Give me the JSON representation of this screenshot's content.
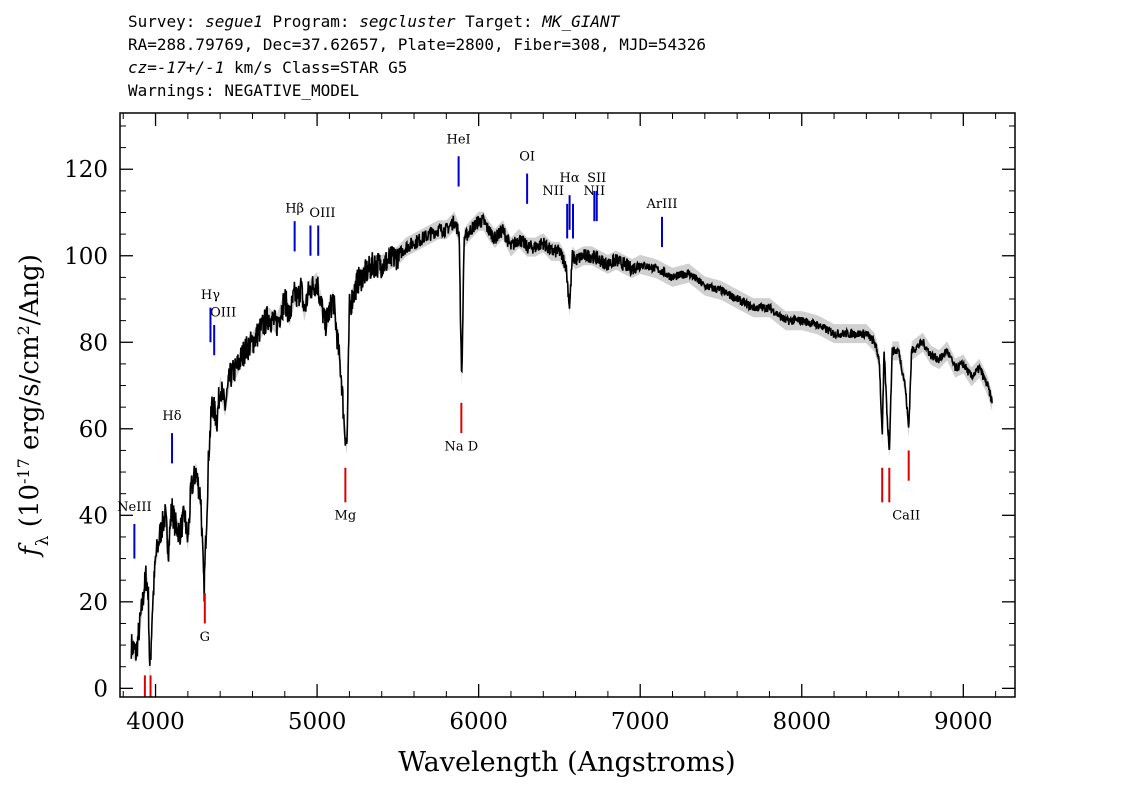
{
  "header": {
    "l1": [
      {
        "text": "Survey: ",
        "italic": false
      },
      {
        "text": "segue1",
        "italic": true
      },
      {
        "text": " Program: ",
        "italic": false
      },
      {
        "text": "segcluster",
        "italic": true
      },
      {
        "text": " Target: ",
        "italic": false
      },
      {
        "text": "MK_GIANT",
        "italic": true
      }
    ],
    "l2": [
      {
        "text": "RA=288.79769, Dec=37.62657, Plate=2800, Fiber=308, MJD=54326",
        "italic": false
      }
    ],
    "l3": [
      {
        "text": "cz=-17+/-1",
        "italic": true
      },
      {
        "text": " km/s Class=STAR G5",
        "italic": false
      }
    ],
    "l4": [
      {
        "text": "Warnings: NEGATIVE_MODEL",
        "italic": false
      }
    ]
  },
  "chart_data": {
    "type": "line",
    "xlabel": "Wavelength (Angstroms)",
    "ylabel_parts": [
      "f",
      "λ",
      " (10",
      "-17",
      " erg/s/cm",
      "2",
      "/Ang)"
    ],
    "xlim": [
      3780,
      9320
    ],
    "ylim": [
      -2,
      133
    ],
    "xticks": [
      4000,
      5000,
      6000,
      7000,
      8000,
      9000
    ],
    "yticks": [
      0,
      20,
      40,
      60,
      80,
      100,
      120
    ],
    "xtick_labels": [
      "4000",
      "5000",
      "6000",
      "7000",
      "8000",
      "9000"
    ],
    "ytick_labels": [
      "0",
      "20",
      "40",
      "60",
      "80",
      "100",
      "120"
    ],
    "series": [
      {
        "color": "#000000",
        "error_band_color": "#aaaaaa",
        "x": [
          3850,
          3880,
          3900,
          3920,
          3940,
          3955,
          3965,
          3980,
          4000,
          4030,
          4060,
          4080,
          4100,
          4120,
          4150,
          4180,
          4200,
          4220,
          4250,
          4280,
          4300,
          4330,
          4350,
          4380,
          4400,
          4430,
          4460,
          4500,
          4550,
          4600,
          4650,
          4700,
          4750,
          4800,
          4830,
          4860,
          4880,
          4900,
          4920,
          4950,
          5000,
          5050,
          5100,
          5150,
          5170,
          5185,
          5200,
          5250,
          5300,
          5350,
          5400,
          5450,
          5500,
          5550,
          5600,
          5650,
          5700,
          5750,
          5800,
          5850,
          5870,
          5880,
          5890,
          5896,
          5910,
          5950,
          6000,
          6030,
          6060,
          6100,
          6150,
          6200,
          6250,
          6300,
          6350,
          6400,
          6450,
          6500,
          6540,
          6563,
          6580,
          6600,
          6650,
          6700,
          6750,
          6800,
          6850,
          6900,
          6950,
          7000,
          7100,
          7200,
          7300,
          7400,
          7500,
          7600,
          7700,
          7800,
          7900,
          8000,
          8100,
          8200,
          8300,
          8400,
          8450,
          8480,
          8498,
          8510,
          8530,
          8542,
          8560,
          8600,
          8640,
          8662,
          8680,
          8750,
          8800,
          8850,
          8900,
          8950,
          9000,
          9050,
          9100,
          9150,
          9180
        ],
        "y": [
          10,
          8,
          14,
          20,
          26,
          22,
          3,
          18,
          30,
          36,
          40,
          32,
          42,
          38,
          36,
          40,
          34,
          46,
          50,
          44,
          22,
          55,
          66,
          62,
          70,
          65,
          72,
          74,
          78,
          80,
          83,
          86,
          84,
          90,
          86,
          91,
          90,
          93,
          87,
          92,
          94,
          84,
          90,
          72,
          60,
          56,
          88,
          94,
          96,
          98,
          98,
          99,
          100,
          102,
          103,
          104,
          105,
          106,
          106,
          108,
          106,
          105,
          80,
          72,
          104,
          106,
          108,
          108,
          106,
          104,
          106,
          102,
          104,
          102,
          102,
          103,
          101,
          101,
          98,
          88,
          100,
          99,
          100,
          100,
          99,
          98,
          99,
          98,
          97,
          98,
          97,
          95,
          96,
          93,
          92,
          90,
          88,
          88,
          85,
          85,
          84,
          82,
          82,
          82,
          80,
          76,
          58,
          78,
          62,
          55,
          78,
          78,
          70,
          60,
          78,
          80,
          77,
          76,
          78,
          74,
          75,
          72,
          74,
          70,
          66
        ]
      }
    ],
    "lines_blue": [
      {
        "label": "NeIII",
        "x": 3869,
        "yb": 30,
        "yt": 38,
        "label_y": 41
      },
      {
        "label": "Hδ",
        "x": 4102,
        "yb": 52,
        "yt": 59,
        "label_y": 62
      },
      {
        "label": "Hγ",
        "x": 4340,
        "yb": 80,
        "yt": 88,
        "label_y": 90
      },
      {
        "label": "OIII",
        "x": 4363,
        "yb": 77,
        "yt": 84,
        "label_y": 86,
        "label_dx": 9
      },
      {
        "label": "Hβ",
        "x": 4861,
        "yb": 101,
        "yt": 108,
        "label_y": 110
      },
      {
        "label": "OIII",
        "x": 4959,
        "yb": 100,
        "yt": 107,
        "label_y": 109,
        "label_dx": 12
      },
      {
        "label": "",
        "x": 5007,
        "yb": 100,
        "yt": 107,
        "label_y": 0
      },
      {
        "label": "HeI",
        "x": 5876,
        "yb": 116,
        "yt": 123,
        "label_y": 126
      },
      {
        "label": "OI",
        "x": 6300,
        "yb": 112,
        "yt": 119,
        "label_y": 122
      },
      {
        "label": "NII",
        "x": 6548,
        "yb": 104,
        "yt": 112,
        "label_y": 114,
        "label_dx": -14
      },
      {
        "label": "Hα",
        "x": 6563,
        "yb": 106,
        "yt": 114,
        "label_y": 117
      },
      {
        "label": "",
        "x": 6584,
        "yb": 104,
        "yt": 112,
        "label_y": 0
      },
      {
        "label": "NII",
        "x": 6716,
        "yb": 108,
        "yt": 115,
        "label_y": 114
      },
      {
        "label": "SII",
        "x": 6731,
        "yb": 108,
        "yt": 115,
        "label_y": 117
      },
      {
        "label": "ArIII",
        "x": 7135,
        "yb": 102,
        "yt": 109,
        "label_y": 111
      }
    ],
    "lines_red": [
      {
        "label": "",
        "x": 3934,
        "yb": -2,
        "yt": 3,
        "label_y": 0
      },
      {
        "label": "",
        "x": 3969,
        "yb": -2,
        "yt": 3,
        "label_y": 0
      },
      {
        "label": "G",
        "x": 4305,
        "yb": 15,
        "yt": 22,
        "label_y": 11
      },
      {
        "label": "Mg",
        "x": 5175,
        "yb": 43,
        "yt": 51,
        "label_y": 39
      },
      {
        "label": "Na D",
        "x": 5893,
        "yb": 59,
        "yt": 66,
        "label_y": 55
      },
      {
        "label": "CaII",
        "x": 8498,
        "yb": 43,
        "yt": 51,
        "label_y": 39,
        "label_dx": 24
      },
      {
        "label": "",
        "x": 8542,
        "yb": 43,
        "yt": 51,
        "label_y": 0
      },
      {
        "label": "",
        "x": 8662,
        "yb": 48,
        "yt": 55,
        "label_y": 0
      }
    ]
  }
}
